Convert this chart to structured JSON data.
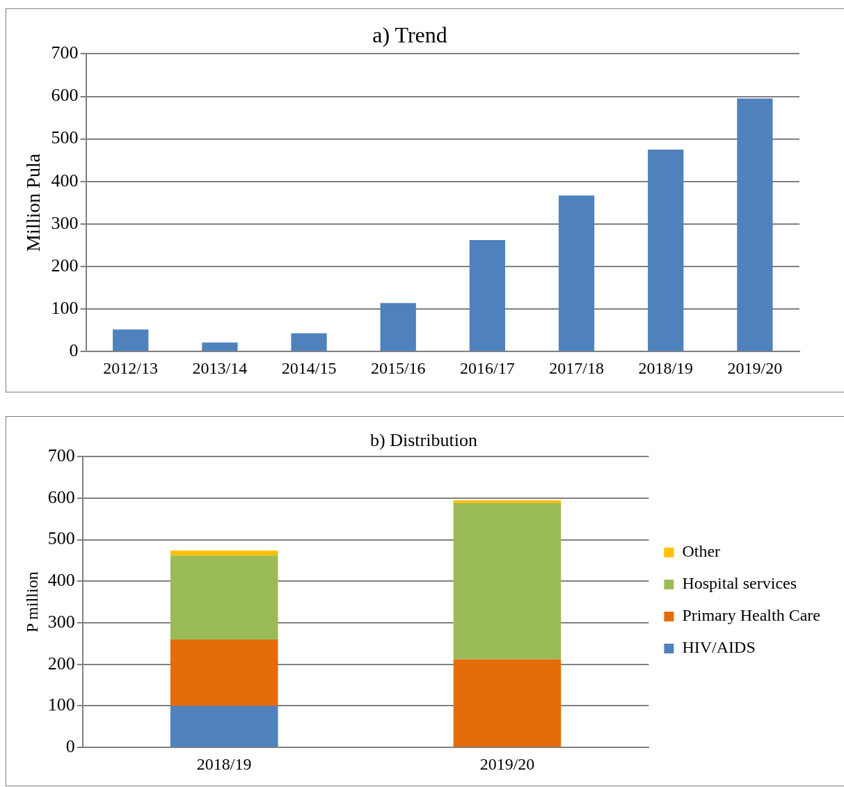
{
  "chart_data": [
    {
      "type": "bar",
      "title": "a) Trend",
      "ylabel": "Million Pula",
      "categories": [
        "2012/13",
        "2013/14",
        "2014/15",
        "2015/16",
        "2016/17",
        "2017/18",
        "2018/19",
        "2019/20"
      ],
      "series": [
        {
          "color": "#4f81bd",
          "values": [
            52,
            21,
            43,
            114,
            262,
            367,
            475,
            595
          ]
        }
      ],
      "ylim": [
        0,
        700
      ],
      "yticks": [
        0,
        100,
        200,
        300,
        400,
        500,
        600,
        700
      ],
      "grid": "y",
      "legend": false
    },
    {
      "type": "bar",
      "title": "b) Distribution",
      "ylabel": "P million",
      "categories": [
        "2018/19",
        "2019/20"
      ],
      "stacked": true,
      "series": [
        {
          "name": "HIV/AIDS",
          "color": "#4f81bd",
          "values": [
            100,
            0
          ]
        },
        {
          "name": "Primary Health Care",
          "color": "#e46c0a",
          "values": [
            160,
            212
          ]
        },
        {
          "name": "Hospital services",
          "color": "#9bbb59",
          "values": [
            202,
            376
          ]
        },
        {
          "name": "Other",
          "color": "#ffc000",
          "values": [
            12,
            7
          ]
        }
      ],
      "ylim": [
        0,
        700
      ],
      "yticks": [
        0,
        100,
        200,
        300,
        400,
        500,
        600,
        700
      ],
      "grid": "y",
      "legend": "right"
    }
  ]
}
